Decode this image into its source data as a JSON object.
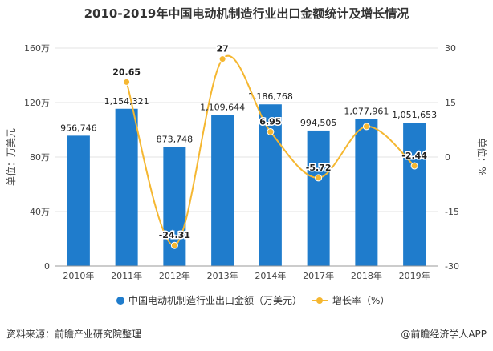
{
  "title": "2010-2019年中国电动机制造行业出口金额统计及增长情况",
  "source": "资料来源：前瞻产业研究院整理",
  "brand": "@前瞻经济学人APP",
  "chart_data": {
    "type": "bar+line",
    "categories": [
      "2010年",
      "2011年",
      "2012年",
      "2013年",
      "2014年",
      "2017年",
      "2018年",
      "2019年"
    ],
    "series": [
      {
        "name": "中国电动机制造行业出口金额（万美元）",
        "type": "bar",
        "axis": "left",
        "color": "#1f7ccc",
        "values": [
          956746,
          1154321,
          873748,
          1109644,
          1186768,
          994505,
          1077961,
          1051653
        ],
        "labels": [
          "956,746",
          "1,154,321",
          "873,748",
          "1,109,644",
          "1,186,768",
          "994,505",
          "1,077,961",
          "1,051,653"
        ]
      },
      {
        "name": "增长率（%）",
        "type": "line",
        "axis": "right",
        "color": "#f5b731",
        "values": [
          null,
          20.65,
          -24.31,
          27,
          6.95,
          -5.72,
          8.4,
          -2.44
        ],
        "labels": [
          "",
          "20.65",
          "-24.31",
          "27",
          "6.95",
          "-5.72",
          "",
          "-2.44"
        ]
      }
    ],
    "y_left": {
      "label": "单位：万美元",
      "min": 0,
      "max": 1600000,
      "ticks": [
        0,
        400000,
        800000,
        1200000,
        1600000
      ],
      "tick_labels": [
        "0",
        "40万",
        "80万",
        "120万",
        "160万"
      ]
    },
    "y_right": {
      "label": "单位：%",
      "min": -30,
      "max": 30,
      "ticks": [
        -30,
        -15,
        0,
        15,
        30
      ],
      "tick_labels": [
        "-30",
        "-15",
        "0",
        "15",
        "30"
      ]
    },
    "grid": true,
    "legend_position": "bottom"
  }
}
